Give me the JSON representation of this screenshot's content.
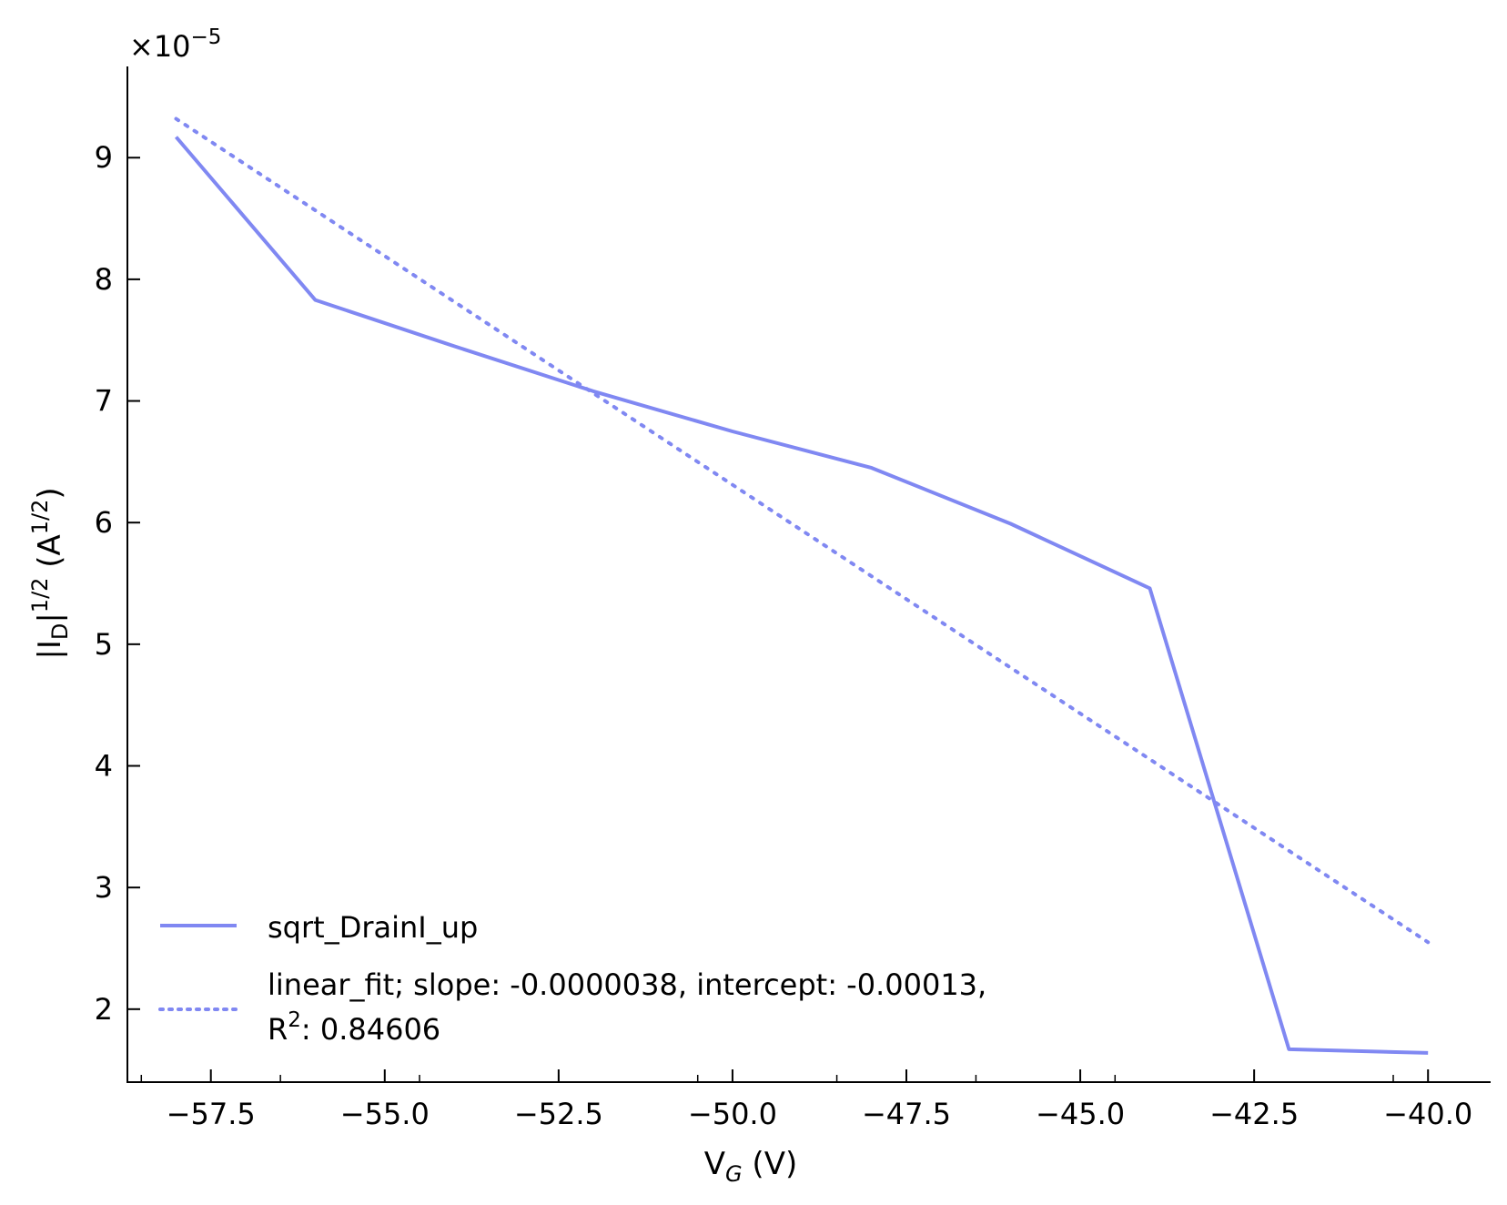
{
  "chart_data": {
    "type": "line",
    "xlabel": {
      "main": "V",
      "sub": "G",
      "unit": " (V)"
    },
    "ylabel": {
      "pre": "|I",
      "sub": "D",
      "mid": "|",
      "sup": "1/2",
      "unit_open": " (A",
      "unit_sup": "1/2",
      "unit_close": ")"
    },
    "y_multiplier": {
      "base": "×10",
      "exp": "−5"
    },
    "xlim": [
      -58.7,
      -39.1
    ],
    "ylim": [
      1.4,
      9.75
    ],
    "x_ticks": [
      -57.5,
      -55.0,
      -52.5,
      -50.0,
      -47.5,
      -45.0,
      -42.5,
      -40.0
    ],
    "x_tick_labels": [
      "−57.5",
      "−55.0",
      "−52.5",
      "−50.0",
      "−47.5",
      "−45.0",
      "−42.5",
      "−40.0"
    ],
    "x_minor_ticks": [
      -58.5,
      -56.5,
      -54.5,
      -52.5,
      -50.5,
      -48.5,
      -46.5,
      -44.5,
      -42.5,
      -40.5
    ],
    "y_ticks": [
      2,
      3,
      4,
      5,
      6,
      7,
      8,
      9
    ],
    "y_tick_labels": [
      "2",
      "3",
      "4",
      "5",
      "6",
      "7",
      "8",
      "9"
    ],
    "grid": false,
    "legend_position": "lower-left",
    "series": [
      {
        "name": "sqrt_DrainI_up",
        "style": "solid",
        "color": "#8088f2",
        "x": [
          -58,
          -56,
          -54,
          -52,
          -50,
          -48,
          -46,
          -44,
          -42,
          -40
        ],
        "y": [
          9.17,
          7.83,
          7.45,
          7.08,
          6.75,
          6.45,
          5.99,
          5.46,
          1.67,
          1.64
        ]
      },
      {
        "name": "linear_fit; slope: -0.0000038, intercept: -0.00013,",
        "name_line2_pre": "R",
        "name_line2_sup": "2",
        "name_line2_post": ": 0.84606",
        "style": "dotted",
        "color": "#8088f2",
        "x": [
          -58,
          -40
        ],
        "y": [
          9.32,
          2.55
        ]
      }
    ]
  }
}
